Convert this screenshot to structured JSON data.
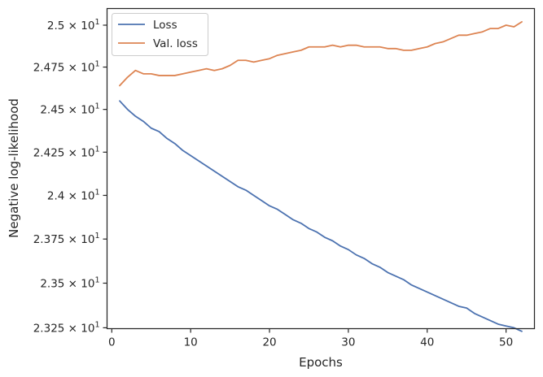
{
  "chart_data": {
    "type": "line",
    "xlabel": "Epochs",
    "ylabel": "Negative log-likelihood",
    "xlim": [
      -0.6,
      53.6
    ],
    "ylim": [
      23.245,
      25.1
    ],
    "yscale": "log",
    "grid": false,
    "legend_position": "top-left",
    "x_ticks": [
      0,
      10,
      20,
      30,
      40,
      50
    ],
    "x_tick_labels": [
      "0",
      "10",
      "20",
      "30",
      "40",
      "50"
    ],
    "y_ticks": [
      {
        "value": 23.25,
        "mantissa": "2.325"
      },
      {
        "value": 23.5,
        "mantissa": "2.35"
      },
      {
        "value": 23.75,
        "mantissa": "2.375"
      },
      {
        "value": 24.0,
        "mantissa": "2.4"
      },
      {
        "value": 24.25,
        "mantissa": "2.425"
      },
      {
        "value": 24.5,
        "mantissa": "2.45"
      },
      {
        "value": 24.75,
        "mantissa": "2.475"
      },
      {
        "value": 25.0,
        "mantissa": "2.5"
      }
    ],
    "y_tick_multiplier": "× 10",
    "y_tick_exponent": "1",
    "x": [
      1,
      2,
      3,
      4,
      5,
      6,
      7,
      8,
      9,
      10,
      11,
      12,
      13,
      14,
      15,
      16,
      17,
      18,
      19,
      20,
      21,
      22,
      23,
      24,
      25,
      26,
      27,
      28,
      29,
      30,
      31,
      32,
      33,
      34,
      35,
      36,
      37,
      38,
      39,
      40,
      41,
      42,
      43,
      44,
      45,
      46,
      47,
      48,
      49,
      50,
      51,
      52
    ],
    "series": [
      {
        "name": "Loss",
        "color": "#4c72b0",
        "values": [
          24.55,
          24.5,
          24.46,
          24.43,
          24.39,
          24.37,
          24.33,
          24.3,
          24.26,
          24.23,
          24.2,
          24.17,
          24.14,
          24.11,
          24.08,
          24.05,
          24.03,
          24.0,
          23.97,
          23.94,
          23.92,
          23.89,
          23.86,
          23.84,
          23.81,
          23.79,
          23.76,
          23.74,
          23.71,
          23.69,
          23.66,
          23.64,
          23.61,
          23.59,
          23.56,
          23.54,
          23.52,
          23.49,
          23.47,
          23.45,
          23.43,
          23.41,
          23.39,
          23.37,
          23.36,
          23.33,
          23.31,
          23.29,
          23.27,
          23.26,
          23.25,
          23.23
        ]
      },
      {
        "name": "Val. loss",
        "color": "#dd8452",
        "values": [
          24.64,
          24.69,
          24.73,
          24.71,
          24.71,
          24.7,
          24.7,
          24.7,
          24.71,
          24.72,
          24.73,
          24.74,
          24.73,
          24.74,
          24.76,
          24.79,
          24.79,
          24.78,
          24.79,
          24.8,
          24.82,
          24.83,
          24.84,
          24.85,
          24.87,
          24.87,
          24.87,
          24.88,
          24.87,
          24.88,
          24.88,
          24.87,
          24.87,
          24.87,
          24.86,
          24.86,
          24.85,
          24.85,
          24.86,
          24.87,
          24.89,
          24.9,
          24.92,
          24.94,
          24.94,
          24.95,
          24.96,
          24.98,
          24.98,
          25.0,
          24.99,
          25.02
        ]
      }
    ]
  }
}
